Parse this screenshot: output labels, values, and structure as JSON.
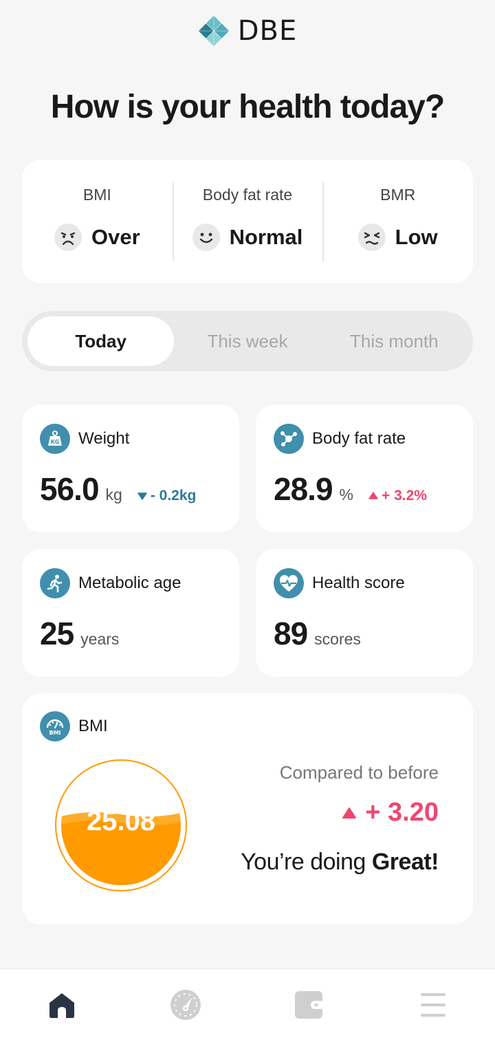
{
  "app": {
    "logo_text": "DBE"
  },
  "page": {
    "title": "How is your health today?"
  },
  "status": [
    {
      "label": "BMI",
      "value": "Over",
      "face": "sad-face-icon"
    },
    {
      "label": "Body fat rate",
      "value": "Normal",
      "face": "smile-face-icon"
    },
    {
      "label": "BMR",
      "value": "Low",
      "face": "squint-face-icon"
    }
  ],
  "tabs": [
    {
      "label": "Today",
      "active": true
    },
    {
      "label": "This week",
      "active": false
    },
    {
      "label": "This month",
      "active": false
    }
  ],
  "metrics": {
    "weight": {
      "label": "Weight",
      "value": "56.0",
      "unit": "kg",
      "delta": "- 0.2kg",
      "direction": "down",
      "icon": "kg-weight-icon"
    },
    "body_fat": {
      "label": "Body fat rate",
      "value": "28.9",
      "unit": "%",
      "delta": "+ 3.2%",
      "direction": "up",
      "icon": "molecule-icon"
    },
    "metabolic_age": {
      "label": "Metabolic age",
      "value": "25",
      "unit": "years",
      "icon": "running-person-icon"
    },
    "health_score": {
      "label": "Health score",
      "value": "89",
      "unit": "scores",
      "icon": "heart-pulse-icon"
    }
  },
  "bmi": {
    "label": "BMI",
    "value": "25.08",
    "compared_label": "Compared to before",
    "compared_value": "+ 3.20",
    "message_prefix": "You’re doing ",
    "message_emphasis": "Great!",
    "icon": "bmi-gauge-icon"
  },
  "bottom_nav": [
    {
      "name": "home",
      "icon": "home-icon",
      "active": true
    },
    {
      "name": "dashboard",
      "icon": "speedometer-icon",
      "active": false
    },
    {
      "name": "wallet",
      "icon": "wallet-icon",
      "active": false
    },
    {
      "name": "menu",
      "icon": "menu-icon",
      "active": false
    }
  ],
  "colors": {
    "accent": "#3f8fad",
    "down": "#2d7a95",
    "up": "#f0466e",
    "gauge": "#ff9a00",
    "nav_active": "#2b3445",
    "nav_inactive": "#cfcfcf"
  }
}
